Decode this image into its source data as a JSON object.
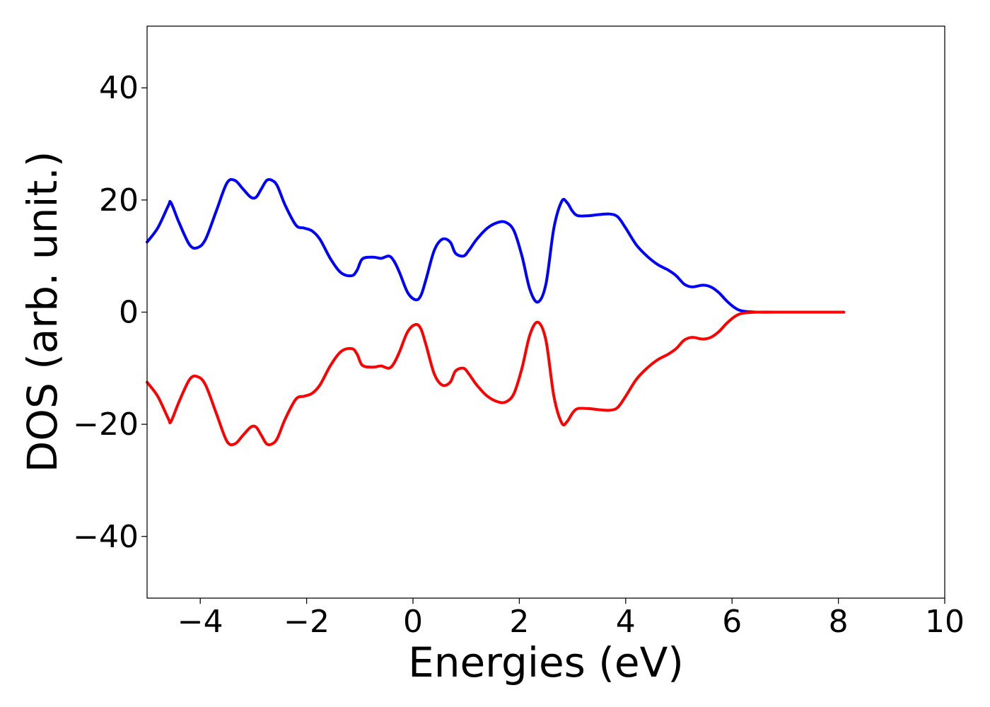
{
  "chart_data": {
    "type": "line",
    "title": "",
    "xlabel": "Energies (eV)",
    "ylabel": "DOS (arb. unit.)",
    "xlim": [
      -5,
      10
    ],
    "ylim": [
      -51,
      51
    ],
    "xticks": [
      -4,
      -2,
      0,
      2,
      4,
      6,
      8,
      10
    ],
    "yticks": [
      -40,
      -20,
      0,
      20,
      40
    ],
    "xtick_labels": [
      "−4",
      "−2",
      "0",
      "2",
      "4",
      "6",
      "8",
      "10"
    ],
    "ytick_labels": [
      "−40",
      "−20",
      "0",
      "20",
      "40"
    ],
    "grid": false,
    "legend": false,
    "series": [
      {
        "color": "#0000ff",
        "x": [
          -5.0,
          -4.8,
          -4.6,
          -4.55,
          -4.4,
          -4.2,
          -4.05,
          -3.9,
          -3.7,
          -3.5,
          -3.35,
          -3.2,
          -3.05,
          -2.95,
          -2.85,
          -2.75,
          -2.65,
          -2.55,
          -2.4,
          -2.2,
          -2.05,
          -1.9,
          -1.75,
          -1.55,
          -1.35,
          -1.15,
          -1.05,
          -0.95,
          -0.75,
          -0.6,
          -0.45,
          -0.35,
          -0.25,
          -0.1,
          0.05,
          0.15,
          0.25,
          0.4,
          0.55,
          0.7,
          0.8,
          0.95,
          1.05,
          1.2,
          1.4,
          1.6,
          1.75,
          1.9,
          2.05,
          2.2,
          2.35,
          2.5,
          2.65,
          2.8,
          2.9,
          3.0,
          3.1,
          3.3,
          3.5,
          3.7,
          3.85,
          4.0,
          4.2,
          4.4,
          4.6,
          4.8,
          4.95,
          5.1,
          5.25,
          5.45,
          5.6,
          5.75,
          5.9,
          6.05,
          6.2,
          6.5,
          7.0,
          7.5,
          8.1
        ],
        "y": [
          12.5,
          15.0,
          19.0,
          19.5,
          16.0,
          12.0,
          11.5,
          13.0,
          18.0,
          23.0,
          23.5,
          22.0,
          20.5,
          20.5,
          22.0,
          23.5,
          23.5,
          22.5,
          19.0,
          15.5,
          15.0,
          14.5,
          13.0,
          9.5,
          7.0,
          6.5,
          7.5,
          9.5,
          9.8,
          9.6,
          10.0,
          9.0,
          7.0,
          3.5,
          2.2,
          3.0,
          6.0,
          11.0,
          13.0,
          12.5,
          10.5,
          10.0,
          11.0,
          13.0,
          15.0,
          16.0,
          16.0,
          14.5,
          10.0,
          4.0,
          1.8,
          5.0,
          15.0,
          19.8,
          19.5,
          18.0,
          17.2,
          17.2,
          17.4,
          17.5,
          17.0,
          15.0,
          12.0,
          10.0,
          8.5,
          7.5,
          6.5,
          5.0,
          4.5,
          4.8,
          4.5,
          3.5,
          2.0,
          0.8,
          0.2,
          0.0,
          0.0,
          0.0,
          0.0
        ]
      },
      {
        "color": "#ff0000",
        "x": [
          -5.0,
          -4.8,
          -4.6,
          -4.55,
          -4.4,
          -4.2,
          -4.05,
          -3.9,
          -3.7,
          -3.5,
          -3.35,
          -3.2,
          -3.05,
          -2.95,
          -2.85,
          -2.75,
          -2.65,
          -2.55,
          -2.4,
          -2.2,
          -2.05,
          -1.9,
          -1.75,
          -1.55,
          -1.35,
          -1.15,
          -1.05,
          -0.95,
          -0.75,
          -0.6,
          -0.45,
          -0.35,
          -0.25,
          -0.1,
          0.05,
          0.15,
          0.25,
          0.4,
          0.55,
          0.7,
          0.8,
          0.95,
          1.05,
          1.2,
          1.4,
          1.6,
          1.75,
          1.9,
          2.05,
          2.2,
          2.35,
          2.5,
          2.65,
          2.8,
          2.9,
          3.0,
          3.1,
          3.3,
          3.5,
          3.7,
          3.85,
          4.0,
          4.2,
          4.4,
          4.6,
          4.8,
          4.95,
          5.1,
          5.25,
          5.45,
          5.6,
          5.75,
          5.9,
          6.05,
          6.2,
          6.5,
          7.0,
          7.5,
          8.1
        ],
        "y": [
          -12.5,
          -15.0,
          -19.0,
          -19.5,
          -16.0,
          -12.0,
          -11.5,
          -13.0,
          -18.0,
          -23.0,
          -23.5,
          -22.0,
          -20.5,
          -20.5,
          -22.0,
          -23.5,
          -23.5,
          -22.5,
          -19.0,
          -15.5,
          -15.0,
          -14.5,
          -13.0,
          -9.5,
          -7.0,
          -6.5,
          -7.5,
          -9.5,
          -9.8,
          -9.6,
          -10.0,
          -9.0,
          -7.0,
          -3.5,
          -2.2,
          -3.0,
          -6.0,
          -11.0,
          -13.0,
          -12.5,
          -10.5,
          -10.0,
          -11.0,
          -13.0,
          -15.0,
          -16.0,
          -16.0,
          -14.5,
          -10.0,
          -4.0,
          -1.8,
          -5.0,
          -15.0,
          -19.8,
          -19.5,
          -18.0,
          -17.2,
          -17.2,
          -17.4,
          -17.5,
          -17.0,
          -15.0,
          -12.0,
          -10.0,
          -8.5,
          -7.5,
          -6.5,
          -5.0,
          -4.5,
          -4.8,
          -4.5,
          -3.5,
          -2.0,
          -0.8,
          -0.2,
          0.0,
          0.0,
          0.0,
          0.0
        ]
      }
    ]
  }
}
